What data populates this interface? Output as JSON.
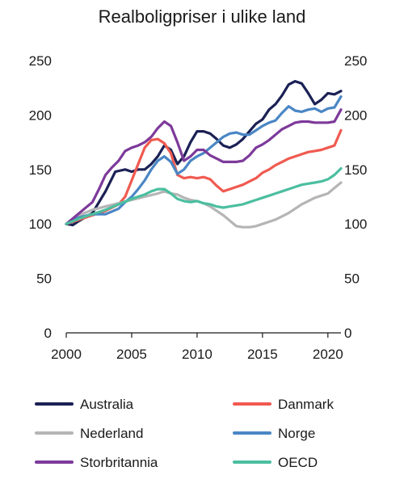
{
  "chart_data": {
    "type": "line",
    "title": "Realboligpriser i ulike land",
    "xlabel": "",
    "ylabel": "",
    "xlim": [
      2000,
      2021
    ],
    "ylim": [
      0,
      250
    ],
    "x_ticks": [
      2000,
      2005,
      2010,
      2015,
      2020
    ],
    "y_ticks": [
      0,
      50,
      100,
      150,
      200,
      250
    ],
    "y_axis": "both sides",
    "grid": false,
    "legend_position": "bottom, two columns",
    "series": [
      {
        "name": "Australia",
        "color": "#1b2155",
        "points": [
          [
            2000,
            100
          ],
          [
            2000.5,
            99
          ],
          [
            2001,
            103
          ],
          [
            2002,
            110
          ],
          [
            2003,
            130
          ],
          [
            2003.75,
            148
          ],
          [
            2004.5,
            150
          ],
          [
            2005,
            148
          ],
          [
            2005.5,
            150
          ],
          [
            2006,
            150
          ],
          [
            2006.5,
            155
          ],
          [
            2007,
            162
          ],
          [
            2007.5,
            172
          ],
          [
            2008,
            168
          ],
          [
            2008.5,
            155
          ],
          [
            2009,
            162
          ],
          [
            2009.5,
            175
          ],
          [
            2010,
            185
          ],
          [
            2010.5,
            185
          ],
          [
            2011,
            183
          ],
          [
            2011.5,
            178
          ],
          [
            2012,
            172
          ],
          [
            2012.5,
            170
          ],
          [
            2013,
            173
          ],
          [
            2013.5,
            178
          ],
          [
            2014,
            185
          ],
          [
            2014.5,
            192
          ],
          [
            2015,
            196
          ],
          [
            2015.5,
            205
          ],
          [
            2016,
            210
          ],
          [
            2016.5,
            218
          ],
          [
            2017,
            228
          ],
          [
            2017.5,
            231
          ],
          [
            2018,
            229
          ],
          [
            2018.5,
            220
          ],
          [
            2019,
            210
          ],
          [
            2019.5,
            214
          ],
          [
            2020,
            220
          ],
          [
            2020.5,
            219
          ],
          [
            2021,
            222
          ]
        ]
      },
      {
        "name": "Danmark",
        "color": "#f05a50",
        "points": [
          [
            2000,
            100
          ],
          [
            2001,
            104
          ],
          [
            2002,
            108
          ],
          [
            2003,
            112
          ],
          [
            2004,
            118
          ],
          [
            2004.5,
            125
          ],
          [
            2005,
            140
          ],
          [
            2005.5,
            155
          ],
          [
            2006,
            170
          ],
          [
            2006.5,
            177
          ],
          [
            2007,
            178
          ],
          [
            2007.5,
            174
          ],
          [
            2008,
            165
          ],
          [
            2008.5,
            145
          ],
          [
            2009,
            142
          ],
          [
            2009.5,
            143
          ],
          [
            2010,
            142
          ],
          [
            2010.5,
            143
          ],
          [
            2011,
            141
          ],
          [
            2011.5,
            135
          ],
          [
            2012,
            130
          ],
          [
            2012.5,
            132
          ],
          [
            2013,
            134
          ],
          [
            2013.5,
            136
          ],
          [
            2014,
            139
          ],
          [
            2014.5,
            142
          ],
          [
            2015,
            147
          ],
          [
            2015.5,
            150
          ],
          [
            2016,
            154
          ],
          [
            2016.5,
            157
          ],
          [
            2017,
            160
          ],
          [
            2017.5,
            162
          ],
          [
            2018,
            164
          ],
          [
            2018.5,
            166
          ],
          [
            2019,
            167
          ],
          [
            2019.5,
            168
          ],
          [
            2020,
            170
          ],
          [
            2020.5,
            172
          ],
          [
            2021,
            186
          ]
        ]
      },
      {
        "name": "Nederland",
        "color": "#b5b5b5",
        "points": [
          [
            2000,
            100
          ],
          [
            2001,
            108
          ],
          [
            2002,
            113
          ],
          [
            2003,
            116
          ],
          [
            2004,
            119
          ],
          [
            2005,
            122
          ],
          [
            2006,
            125
          ],
          [
            2007,
            128
          ],
          [
            2007.5,
            130
          ],
          [
            2008,
            128
          ],
          [
            2008.5,
            127
          ],
          [
            2009,
            124
          ],
          [
            2009.5,
            122
          ],
          [
            2010,
            121
          ],
          [
            2010.5,
            119
          ],
          [
            2011,
            116
          ],
          [
            2011.5,
            112
          ],
          [
            2012,
            108
          ],
          [
            2012.5,
            103
          ],
          [
            2013,
            98
          ],
          [
            2013.5,
            97
          ],
          [
            2014,
            97
          ],
          [
            2014.5,
            98
          ],
          [
            2015,
            100
          ],
          [
            2015.5,
            102
          ],
          [
            2016,
            104
          ],
          [
            2016.5,
            107
          ],
          [
            2017,
            110
          ],
          [
            2017.5,
            114
          ],
          [
            2018,
            118
          ],
          [
            2018.5,
            121
          ],
          [
            2019,
            124
          ],
          [
            2019.5,
            126
          ],
          [
            2020,
            128
          ],
          [
            2020.5,
            133
          ],
          [
            2021,
            138
          ]
        ]
      },
      {
        "name": "Norge",
        "color": "#4a86c5",
        "points": [
          [
            2000,
            100
          ],
          [
            2000.5,
            104
          ],
          [
            2001,
            106
          ],
          [
            2002,
            109
          ],
          [
            2003,
            109
          ],
          [
            2004,
            114
          ],
          [
            2004.5,
            120
          ],
          [
            2005,
            125
          ],
          [
            2005.5,
            132
          ],
          [
            2006,
            140
          ],
          [
            2006.5,
            150
          ],
          [
            2007,
            158
          ],
          [
            2007.5,
            162
          ],
          [
            2008,
            157
          ],
          [
            2008.5,
            146
          ],
          [
            2009,
            150
          ],
          [
            2009.5,
            158
          ],
          [
            2010,
            162
          ],
          [
            2010.5,
            165
          ],
          [
            2011,
            170
          ],
          [
            2011.5,
            175
          ],
          [
            2012,
            180
          ],
          [
            2012.5,
            183
          ],
          [
            2013,
            184
          ],
          [
            2013.5,
            182
          ],
          [
            2014,
            182
          ],
          [
            2014.5,
            186
          ],
          [
            2015,
            190
          ],
          [
            2015.5,
            193
          ],
          [
            2016,
            195
          ],
          [
            2016.5,
            202
          ],
          [
            2017,
            208
          ],
          [
            2017.5,
            204
          ],
          [
            2018,
            203
          ],
          [
            2018.5,
            205
          ],
          [
            2019,
            206
          ],
          [
            2019.5,
            203
          ],
          [
            2020,
            206
          ],
          [
            2020.5,
            207
          ],
          [
            2021,
            217
          ]
        ]
      },
      {
        "name": "Storbritannia",
        "color": "#7d3a9a",
        "points": [
          [
            2000,
            100
          ],
          [
            2000.5,
            105
          ],
          [
            2001,
            110
          ],
          [
            2002,
            120
          ],
          [
            2002.5,
            132
          ],
          [
            2003,
            145
          ],
          [
            2003.5,
            152
          ],
          [
            2004,
            158
          ],
          [
            2004.5,
            167
          ],
          [
            2005,
            170
          ],
          [
            2005.5,
            172
          ],
          [
            2006,
            175
          ],
          [
            2006.5,
            180
          ],
          [
            2007,
            188
          ],
          [
            2007.5,
            194
          ],
          [
            2008,
            190
          ],
          [
            2008.5,
            175
          ],
          [
            2009,
            158
          ],
          [
            2009.5,
            162
          ],
          [
            2010,
            168
          ],
          [
            2010.5,
            168
          ],
          [
            2011,
            163
          ],
          [
            2011.5,
            160
          ],
          [
            2012,
            157
          ],
          [
            2012.5,
            157
          ],
          [
            2013,
            157
          ],
          [
            2013.5,
            158
          ],
          [
            2014,
            163
          ],
          [
            2014.5,
            170
          ],
          [
            2015,
            173
          ],
          [
            2015.5,
            177
          ],
          [
            2016,
            182
          ],
          [
            2016.5,
            187
          ],
          [
            2017,
            190
          ],
          [
            2017.5,
            193
          ],
          [
            2018,
            194
          ],
          [
            2018.5,
            194
          ],
          [
            2019,
            193
          ],
          [
            2019.5,
            193
          ],
          [
            2020,
            193
          ],
          [
            2020.5,
            194
          ],
          [
            2021,
            205
          ]
        ]
      },
      {
        "name": "OECD",
        "color": "#4bbfa0",
        "points": [
          [
            2000,
            100
          ],
          [
            2001,
            105
          ],
          [
            2002,
            109
          ],
          [
            2003,
            113
          ],
          [
            2004,
            118
          ],
          [
            2005,
            123
          ],
          [
            2006,
            127
          ],
          [
            2006.5,
            130
          ],
          [
            2007,
            132
          ],
          [
            2007.5,
            132
          ],
          [
            2008,
            128
          ],
          [
            2008.5,
            123
          ],
          [
            2009,
            121
          ],
          [
            2009.5,
            120
          ],
          [
            2010,
            121
          ],
          [
            2010.5,
            119
          ],
          [
            2011,
            118
          ],
          [
            2011.5,
            116
          ],
          [
            2012,
            115
          ],
          [
            2012.5,
            116
          ],
          [
            2013,
            117
          ],
          [
            2013.5,
            118
          ],
          [
            2014,
            120
          ],
          [
            2014.5,
            122
          ],
          [
            2015,
            124
          ],
          [
            2015.5,
            126
          ],
          [
            2016,
            128
          ],
          [
            2016.5,
            130
          ],
          [
            2017,
            132
          ],
          [
            2017.5,
            134
          ],
          [
            2018,
            136
          ],
          [
            2018.5,
            137
          ],
          [
            2019,
            138
          ],
          [
            2019.5,
            139
          ],
          [
            2020,
            141
          ],
          [
            2020.5,
            145
          ],
          [
            2021,
            151
          ]
        ]
      }
    ]
  }
}
